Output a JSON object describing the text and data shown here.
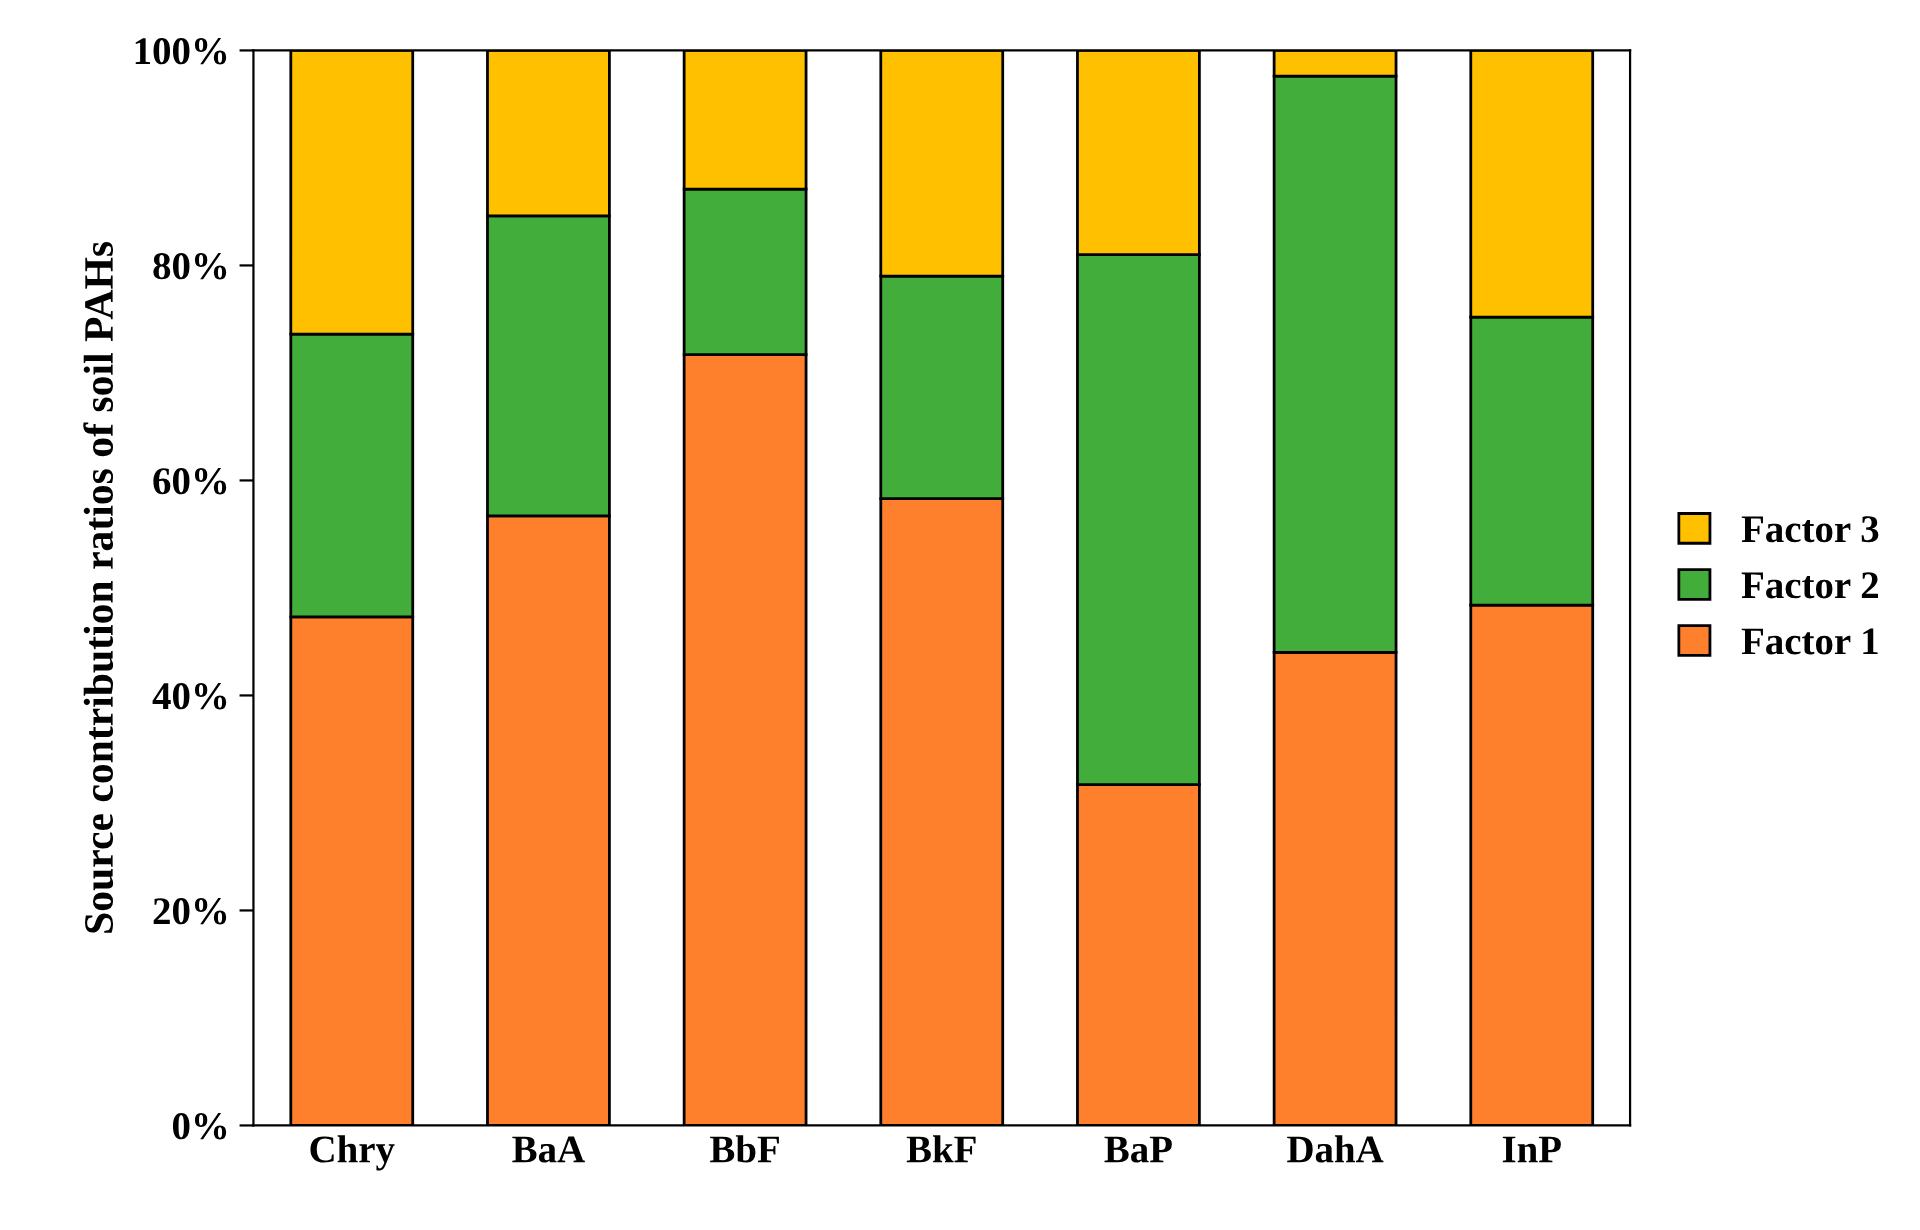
{
  "chart_data": {
    "type": "bar",
    "stacked": true,
    "ylabel": "Source contribution ratios of soil PAHs",
    "categories": [
      "Chry",
      "BaA",
      "BbF",
      "BkF",
      "BaP",
      "DahA",
      "InP"
    ],
    "series": [
      {
        "name": "Factor 1",
        "color": "#fe7f2c",
        "values": [
          47.3,
          56.7,
          71.7,
          58.3,
          31.7,
          44.0,
          48.4
        ]
      },
      {
        "name": "Factor 2",
        "color": "#43ad3b",
        "values": [
          26.3,
          27.9,
          15.4,
          20.7,
          49.3,
          53.6,
          26.8
        ]
      },
      {
        "name": "Factor 3",
        "color": "#ffc000",
        "values": [
          26.4,
          15.4,
          12.9,
          21.0,
          19.0,
          2.4,
          24.8
        ]
      }
    ],
    "ylim": [
      0,
      100
    ],
    "yticks": [
      {
        "value": 0,
        "label": "0%"
      },
      {
        "value": 20,
        "label": "20%"
      },
      {
        "value": 40,
        "label": "40%"
      },
      {
        "value": 60,
        "label": "60%"
      },
      {
        "value": 80,
        "label": "80%"
      },
      {
        "value": 100,
        "label": "100%"
      }
    ],
    "grid": false,
    "legend": "right"
  }
}
